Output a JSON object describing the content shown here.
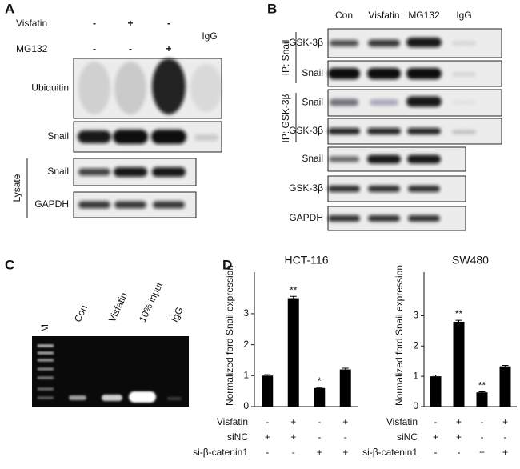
{
  "panels": {
    "A": {
      "letter": "A",
      "treatments": [
        {
          "name": "Visfatin",
          "lanes": [
            "-",
            "+",
            "-"
          ]
        },
        {
          "name": "MG132",
          "lanes": [
            "-",
            "-",
            "+"
          ]
        }
      ],
      "igg": "IgG",
      "blots": [
        "Ubiquitin",
        "Snail",
        "Snail",
        "GAPDH"
      ],
      "group": "Lysate"
    },
    "B": {
      "letter": "B",
      "lanes": [
        "Con",
        "Visfatin",
        "MG132",
        "IgG"
      ],
      "blots": [
        "GSK-3β",
        "Snail",
        "Snail",
        "GSK-3β",
        "Snail",
        "GSK-3β",
        "GAPDH"
      ],
      "groups": [
        "IP: Snail",
        "IP: GSK-3β"
      ]
    },
    "C": {
      "letter": "C",
      "lanes": [
        "M",
        "Con",
        "Visfatin",
        "10% input",
        "IgG"
      ]
    },
    "D": {
      "letter": "D",
      "conditions": [
        {
          "name": "Visfatin",
          "signs": [
            "-",
            "+",
            "-",
            "+"
          ]
        },
        {
          "name": "siNC",
          "signs": [
            "+",
            "+",
            "-",
            "-"
          ]
        },
        {
          "name": "si-β-catenin1",
          "signs": [
            "-",
            "-",
            "+",
            "+"
          ]
        }
      ]
    }
  },
  "chart_data": [
    {
      "type": "bar",
      "title": "HCT-116",
      "y_label": "Normalized ford Snail expression",
      "values": [
        1,
        3.5,
        0.6,
        1.2
      ],
      "errors": [
        0.03,
        0.06,
        0.02,
        0.04
      ],
      "annotations": [
        null,
        "**",
        "*",
        null
      ],
      "color": "#000000",
      "ylim": [
        0,
        4.6
      ],
      "yticks": [
        0,
        1,
        2,
        3
      ]
    },
    {
      "type": "bar",
      "title": "SW480",
      "y_label": "Normalized ford Snail expression",
      "values": [
        1,
        2.8,
        0.47,
        1.33
      ],
      "errors": [
        0.04,
        0.05,
        0.02,
        0.03
      ],
      "annotations": [
        null,
        "**",
        "**",
        null
      ],
      "color": "#000000",
      "ylim": [
        0,
        4.7
      ],
      "yticks": [
        0,
        1,
        2,
        3
      ]
    }
  ]
}
